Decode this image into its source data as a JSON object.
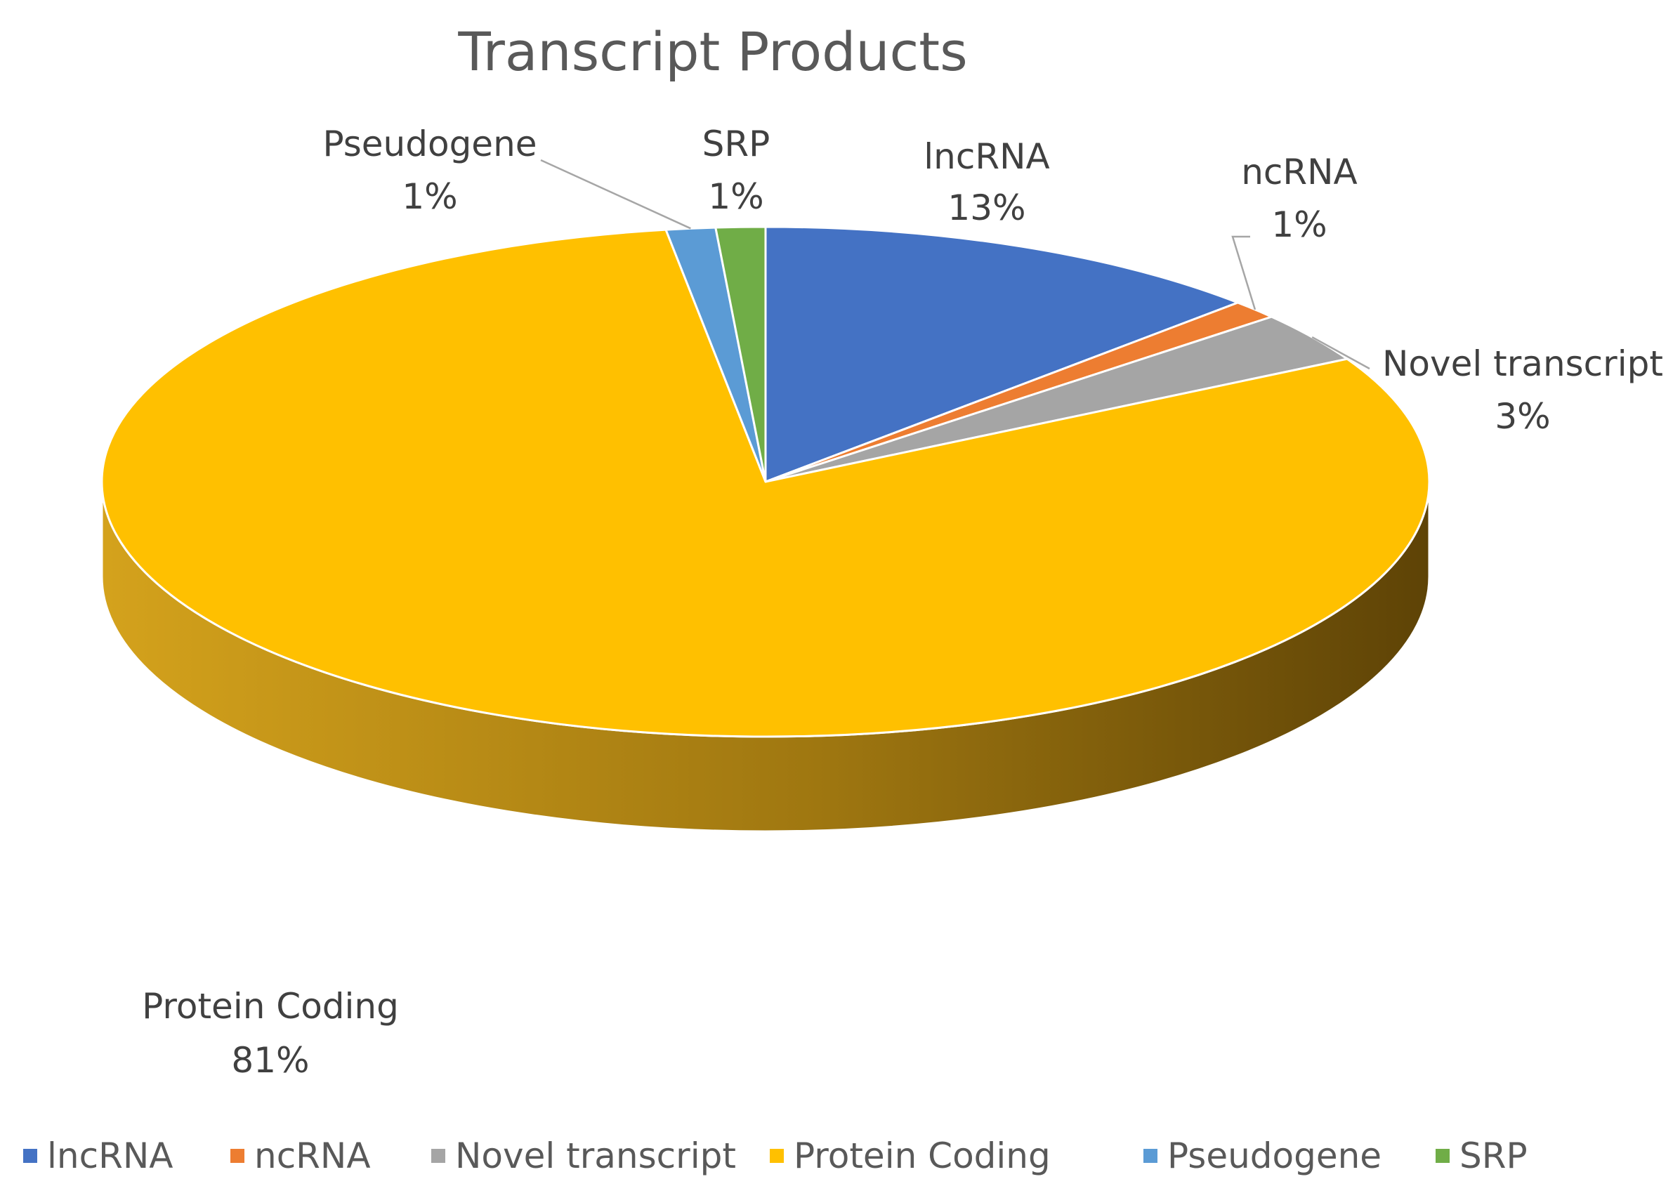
{
  "chart_data": {
    "type": "pie",
    "title": "Transcript Products",
    "legend_position": "bottom",
    "slices": [
      {
        "name": "lncRNA",
        "percent_label": "13%",
        "value": 12.6,
        "color": "#4472C4"
      },
      {
        "name": "ncRNA",
        "percent_label": "1%",
        "value": 1.2,
        "color": "#ED7D31"
      },
      {
        "name": "Novel transcript",
        "percent_label": "3%",
        "value": 3.2,
        "color": "#A5A5A5"
      },
      {
        "name": "Protein Coding",
        "percent_label": "81%",
        "value": 80.6,
        "color": "#FFC000"
      },
      {
        "name": "Pseudogene",
        "percent_label": "1%",
        "value": 1.2,
        "color": "#5B9BD5"
      },
      {
        "name": "SRP",
        "percent_label": "1%",
        "value": 1.2,
        "color": "#70AD47"
      }
    ]
  }
}
